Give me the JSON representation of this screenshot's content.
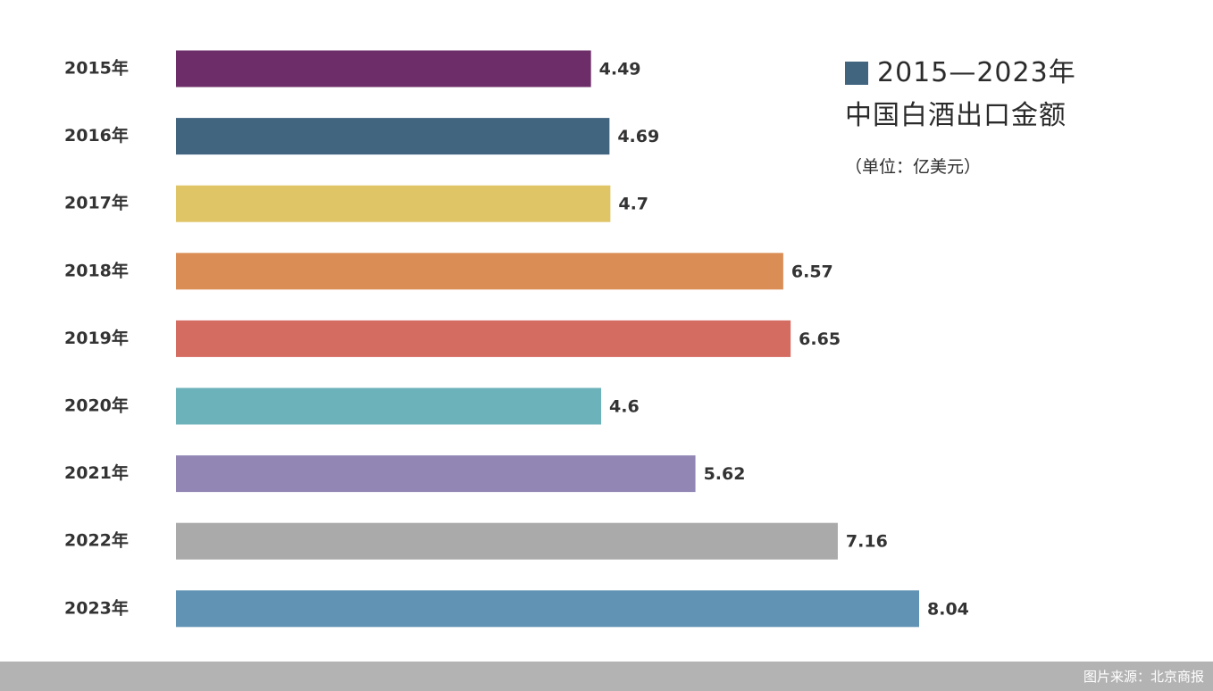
{
  "chart_data": {
    "type": "bar",
    "orientation": "horizontal",
    "title_line1": "2015—2023年",
    "title_line2": "中国白酒出口金额",
    "unit": "（单位：亿美元）",
    "categories": [
      "2015年",
      "2016年",
      "2017年",
      "2018年",
      "2019年",
      "2020年",
      "2021年",
      "2022年",
      "2023年"
    ],
    "values": [
      4.49,
      4.69,
      4.7,
      6.57,
      6.65,
      4.6,
      5.62,
      7.16,
      8.04
    ],
    "value_labels": [
      "4.49",
      "4.69",
      "4.7",
      "6.57",
      "6.65",
      "4.6",
      "5.62",
      "7.16",
      "8.04"
    ],
    "colors": [
      "#6c2d69",
      "#41647f",
      "#dfc566",
      "#db8d56",
      "#d46c62",
      "#6cb2ba",
      "#9287b4",
      "#aaaaaa",
      "#6194b4"
    ],
    "legend_color": "#41647f",
    "xlim": [
      0,
      8.04
    ],
    "grid": false,
    "legend_position": "top-right"
  },
  "footer": {
    "source": "图片来源：北京商报"
  }
}
